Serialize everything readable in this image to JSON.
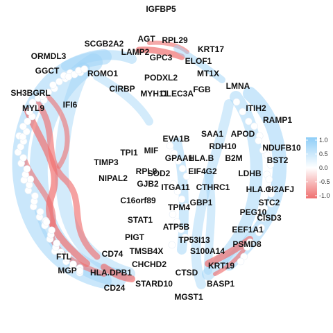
{
  "chart_data": {
    "type": "network",
    "title": "",
    "legend": {
      "placement": "right",
      "min": -1.0,
      "max": 1.0,
      "ticks": [
        "1.0",
        "0.5",
        "0.0",
        "-0.5",
        "-1.0"
      ],
      "low_color": "#ef6f6f",
      "mid_color": "#ffffff",
      "high_color": "#8ecdf7"
    },
    "node_color": "#ffffff",
    "positive_edge_color": "#9ed3f7",
    "negative_edge_color": "#ef7070",
    "nodes": [
      "IGFBP5",
      "AGT",
      "RPL29",
      "SCGB2A2",
      "LAMP2",
      "GPC3",
      "KRT17",
      "ORMDL3",
      "ELOF1",
      "GGCT",
      "ROMO1",
      "PODXL2",
      "MT1X",
      "SH3BGRL",
      "CIRBP",
      "MYH11",
      "CLEC3A",
      "FGB",
      "LMNA",
      "IFI6",
      "MYL9",
      "ITIH2",
      "RAMP1",
      "SAA1",
      "APOD",
      "EVA1B",
      "RDH10",
      "NDUFB10",
      "TPI1",
      "MIF",
      "GPAA1",
      "HLA.B",
      "B2M",
      "TIMP3",
      "BST2",
      "RPL8",
      "EIF4G2",
      "LDHB",
      "SOD2",
      "NIPAL2",
      "GJB2",
      "ITGA11",
      "CTHRC1",
      "HLA.C",
      "H2AFJ",
      "C16orf89",
      "GBP1",
      "STC2",
      "TPM4",
      "PEG10",
      "CISD3",
      "STAT1",
      "ATP5B",
      "EEF1A1",
      "PIGT",
      "TP53I13",
      "PSMD8",
      "CD74",
      "TMSB4X",
      "S100A14",
      "FTL",
      "CHCHD2",
      "KRT19",
      "MGP",
      "HLA.DPB1",
      "CTSD",
      "BASP1",
      "CD24",
      "STARD10",
      "MGST1"
    ]
  }
}
